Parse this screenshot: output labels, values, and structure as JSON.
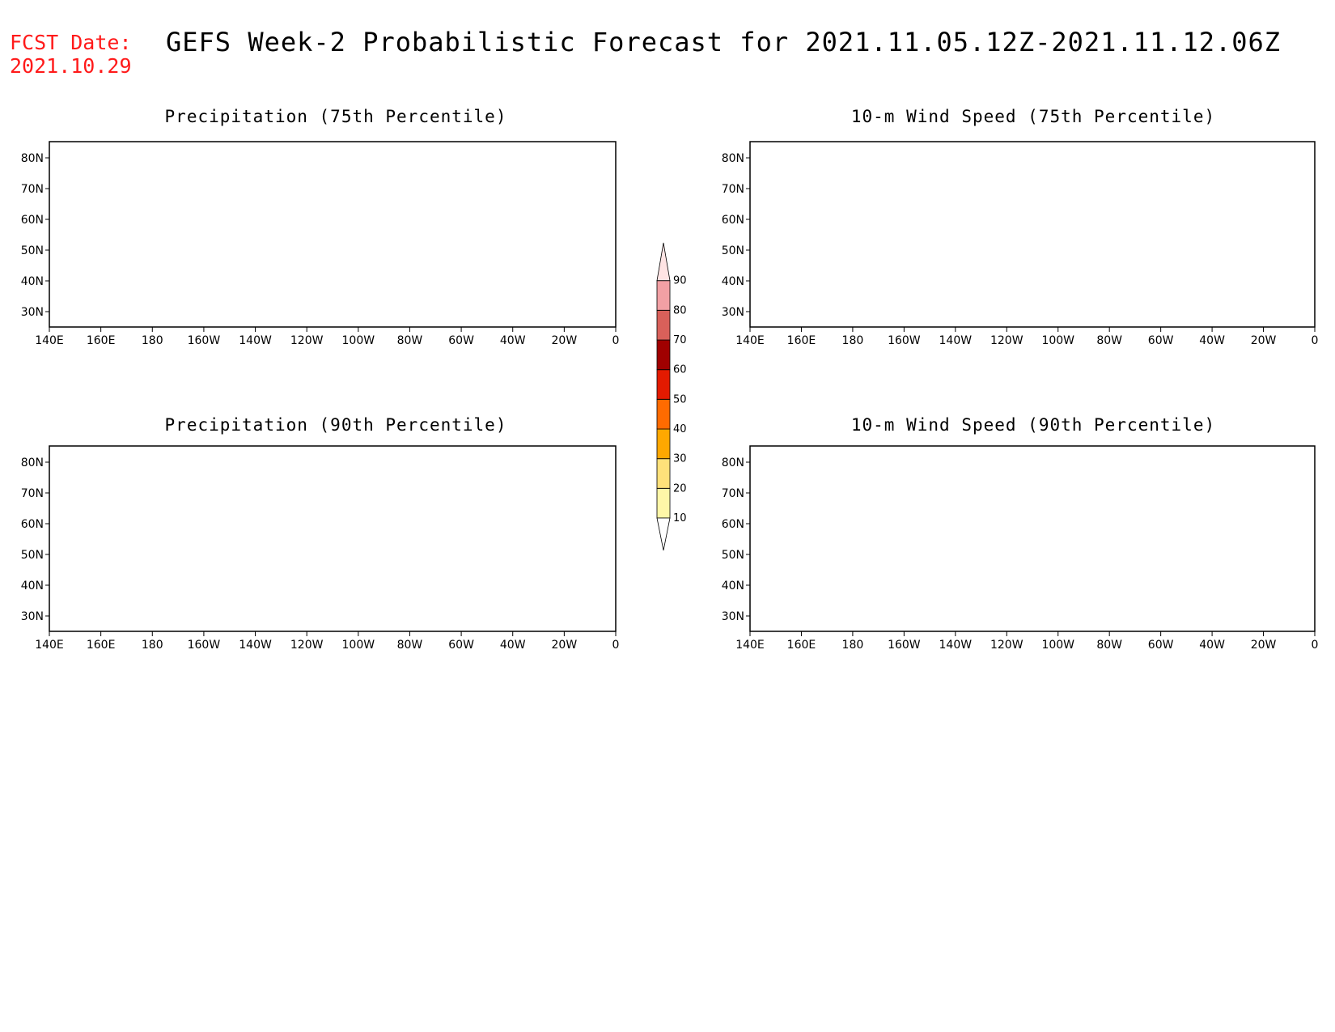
{
  "header": {
    "fcst_label": "FCST Date:",
    "fcst_date": "2021.10.29",
    "title": "GEFS Week-2 Probabilistic Forecast for 2021.11.05.12Z-2021.11.12.06Z"
  },
  "panels": [
    {
      "id": "p1",
      "title": "Precipitation (75th Percentile)",
      "field": "precip75"
    },
    {
      "id": "p2",
      "title": "10-m Wind Speed (75th Percentile)",
      "field": "wind75"
    },
    {
      "id": "p3",
      "title": "Precipitation (90th Percentile)",
      "field": "precip90"
    },
    {
      "id": "p4",
      "title": "10-m Wind Speed (90th Percentile)",
      "field": "wind90"
    }
  ],
  "axes": {
    "lon_labels": [
      "140E",
      "160E",
      "180",
      "160W",
      "140W",
      "120W",
      "100W",
      "80W",
      "60W",
      "40W",
      "20W",
      "0"
    ],
    "lat_labels": [
      "80N",
      "70N",
      "60N",
      "50N",
      "40N",
      "30N"
    ]
  },
  "colorbar": {
    "levels": [
      "10",
      "20",
      "30",
      "40",
      "50",
      "60",
      "70",
      "80",
      "90"
    ],
    "colors": [
      "#fff7a8",
      "#ffe17a",
      "#ffa800",
      "#ff6b00",
      "#e31a00",
      "#a00000",
      "#d9605a",
      "#f2a0a4",
      "#ffe4e4"
    ],
    "below_color": "#ffffff"
  }
}
